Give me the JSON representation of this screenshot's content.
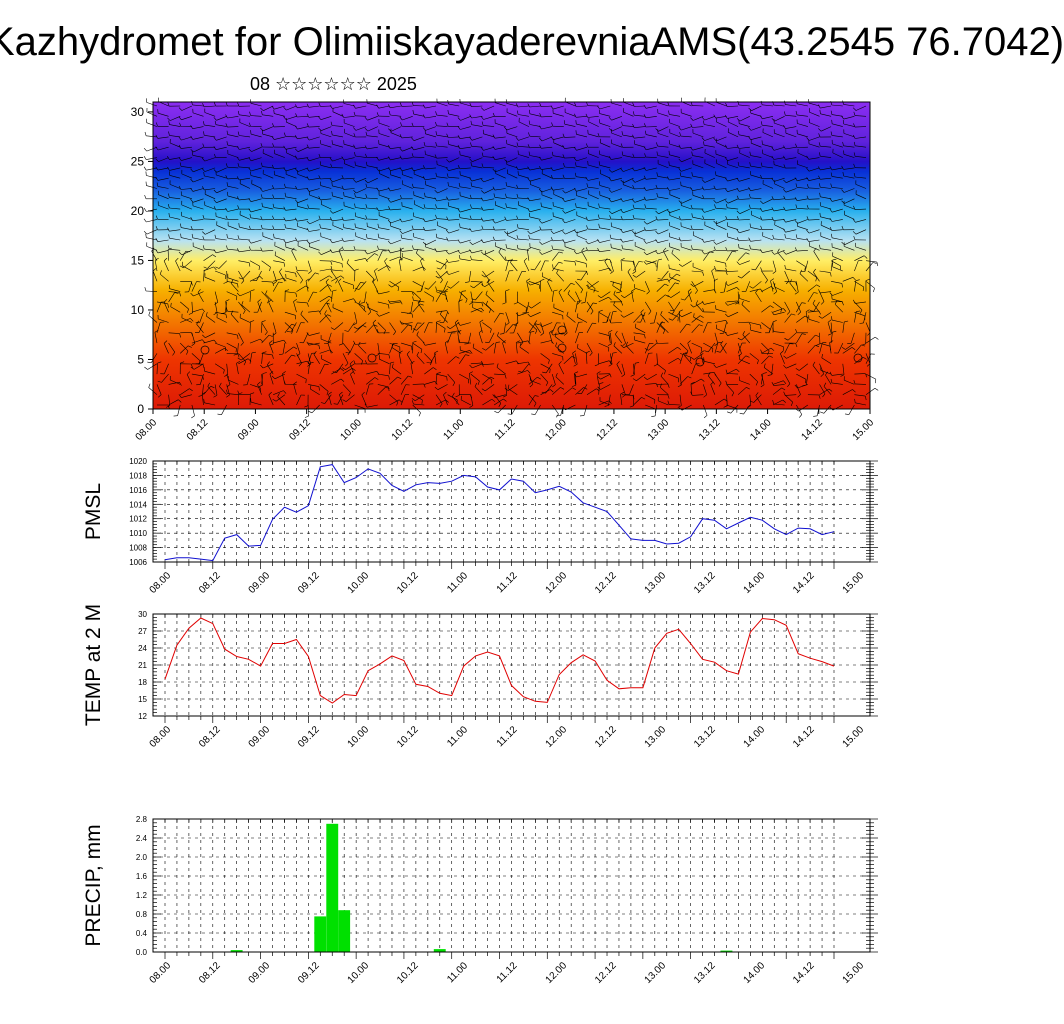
{
  "title": "Kazhydromet for OlimiiskayaderevniaAMS(43.2545 76.7042)",
  "subtitle": "08 ☆☆☆☆☆☆ 2025",
  "colors": {
    "pmsl_line": "#1010d0",
    "temp_line": "#e00000",
    "precip_bar": "#00e000",
    "wind_barb": "#000000",
    "grid": "#000000"
  },
  "chart_data": [
    {
      "type": "heatmap",
      "id": "wind_cross_section",
      "xlabel": "",
      "ylabel": "",
      "x_tick_labels": [
        "08.00",
        "08.12",
        "09.00",
        "09.12",
        "10.00",
        "10.12",
        "11.00",
        "11.12",
        "12.00",
        "12.12",
        "13.00",
        "13.12",
        "14.00",
        "14.12",
        "15.00"
      ],
      "y_ticks": [
        0,
        5,
        10,
        15,
        20,
        25,
        30
      ],
      "ylim": [
        0,
        31
      ],
      "color_bands_by_level": [
        {
          "level": 0,
          "color": "#dd1a06"
        },
        {
          "level": 5,
          "color": "#ee3500"
        },
        {
          "level": 8,
          "color": "#f26a00"
        },
        {
          "level": 12,
          "color": "#f7b000"
        },
        {
          "level": 15,
          "color": "#ffee66"
        },
        {
          "level": 17,
          "color": "#b8e2f2"
        },
        {
          "level": 20,
          "color": "#28b0ee"
        },
        {
          "level": 22,
          "color": "#1860e0"
        },
        {
          "level": 24,
          "color": "#0830d6"
        },
        {
          "level": 25,
          "color": "#2410c8"
        },
        {
          "level": 27,
          "color": "#5f22dc"
        },
        {
          "level": 31,
          "color": "#8c2ef2"
        }
      ],
      "overlay": "wind barbs"
    },
    {
      "type": "line",
      "id": "pmsl",
      "ylabel": "PMSL",
      "x_tick_labels": [
        "08.00",
        "08.12",
        "09.00",
        "09.12",
        "10.00",
        "10.12",
        "11.00",
        "11.12",
        "12.00",
        "12.12",
        "13.00",
        "13.12",
        "14.00",
        "14.12",
        "15.00"
      ],
      "y_ticks": [
        1006,
        1008,
        1010,
        1012,
        1014,
        1016,
        1018,
        1020
      ],
      "ylim": [
        1006,
        1020
      ],
      "grid": true,
      "values": [
        1006.3,
        1006.6,
        1006.6,
        1006.4,
        1006.2,
        1009.3,
        1009.8,
        1008.2,
        1008.3,
        1011.9,
        1013.6,
        1012.9,
        1013.8,
        1019.2,
        1019.5,
        1017.0,
        1017.7,
        1018.9,
        1018.3,
        1016.6,
        1015.8,
        1016.7,
        1017.0,
        1016.9,
        1017.2,
        1018.0,
        1017.8,
        1016.4,
        1016.0,
        1017.5,
        1017.2,
        1015.6,
        1016.0,
        1016.5,
        1015.7,
        1014.2,
        1013.6,
        1013.0,
        1011.1,
        1009.2,
        1009.0,
        1009.0,
        1008.5,
        1008.6,
        1009.5,
        1012.0,
        1011.8,
        1010.6,
        1011.4,
        1012.2,
        1011.8,
        1010.6,
        1009.8,
        1010.7,
        1010.6,
        1009.8,
        1010.2
      ]
    },
    {
      "type": "line",
      "id": "temp2m",
      "ylabel": "TEMP at 2 M",
      "x_tick_labels": [
        "08.00",
        "08.12",
        "09.00",
        "09.12",
        "10.00",
        "10.12",
        "11.00",
        "11.12",
        "12.00",
        "12.12",
        "13.00",
        "13.12",
        "14.00",
        "14.12",
        "15.00"
      ],
      "y_ticks": [
        12,
        15,
        18,
        21,
        24,
        27,
        30
      ],
      "ylim": [
        12,
        30
      ],
      "grid": true,
      "values": [
        18.5,
        24.5,
        27.5,
        29.3,
        28.3,
        23.8,
        22.5,
        22.0,
        20.8,
        24.8,
        24.8,
        25.5,
        22.5,
        15.6,
        14.3,
        15.8,
        15.6,
        20.0,
        21.2,
        22.6,
        21.8,
        17.6,
        17.2,
        16.0,
        15.6,
        20.8,
        22.6,
        23.3,
        22.6,
        17.4,
        15.4,
        14.6,
        14.4,
        19.3,
        21.4,
        22.8,
        21.7,
        18.3,
        16.8,
        17.0,
        17.0,
        24.0,
        26.6,
        27.3,
        24.8,
        22.0,
        21.5,
        20.0,
        19.4,
        26.8,
        29.2,
        29.0,
        28.0,
        23.0,
        22.2,
        21.6,
        20.8
      ]
    },
    {
      "type": "bar",
      "id": "precip",
      "ylabel": "PRECIP, mm",
      "x_tick_labels": [
        "08.00",
        "08.12",
        "09.00",
        "09.12",
        "10.00",
        "10.12",
        "11.00",
        "11.12",
        "12.00",
        "12.12",
        "13.00",
        "13.12",
        "14.00",
        "14.12",
        "15.00"
      ],
      "y_ticks": [
        0.0,
        0.4,
        0.8,
        1.2,
        1.6,
        2.0,
        2.4,
        2.8
      ],
      "y_tick_labels": [
        "0.0",
        "0.4",
        "0.8",
        "1.2",
        "1.6",
        "2.0",
        "2.4",
        "2.8"
      ],
      "ylim": [
        0,
        2.8
      ],
      "grid": true,
      "values": [
        0,
        0,
        0,
        0,
        0,
        0,
        0.04,
        0,
        0,
        0,
        0,
        0,
        0,
        0.75,
        2.7,
        0.88,
        0,
        0,
        0,
        0,
        0,
        0,
        0,
        0.06,
        0,
        0,
        0,
        0,
        0,
        0,
        0,
        0,
        0,
        0,
        0,
        0,
        0,
        0,
        0,
        0,
        0,
        0,
        0,
        0,
        0,
        0,
        0,
        0.03,
        0,
        0,
        0,
        0,
        0,
        0,
        0,
        0,
        0
      ]
    }
  ]
}
